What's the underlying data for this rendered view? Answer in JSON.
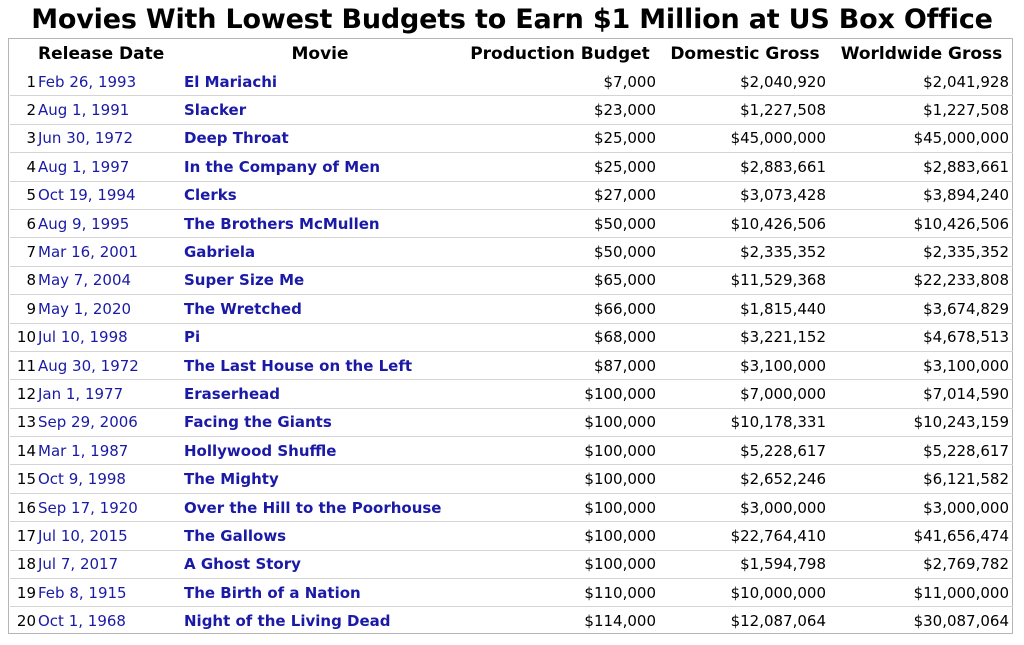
{
  "title": "Movies With Lowest Budgets to Earn $1 Million at US Box Office",
  "columns": {
    "release_date": "Release Date",
    "movie": "Movie",
    "budget": "Production Budget",
    "domestic": "Domestic Gross",
    "worldwide": "Worldwide Gross"
  },
  "rows": [
    {
      "rank": "1",
      "date": "Feb 26, 1993",
      "movie": "El Mariachi",
      "budget": "$7,000",
      "domestic": "$2,040,920",
      "worldwide": "$2,041,928"
    },
    {
      "rank": "2",
      "date": "Aug 1, 1991",
      "movie": "Slacker",
      "budget": "$23,000",
      "domestic": "$1,227,508",
      "worldwide": "$1,227,508"
    },
    {
      "rank": "3",
      "date": "Jun 30, 1972",
      "movie": "Deep Throat",
      "budget": "$25,000",
      "domestic": "$45,000,000",
      "worldwide": "$45,000,000"
    },
    {
      "rank": "4",
      "date": "Aug 1, 1997",
      "movie": "In the Company of Men",
      "budget": "$25,000",
      "domestic": "$2,883,661",
      "worldwide": "$2,883,661"
    },
    {
      "rank": "5",
      "date": "Oct 19, 1994",
      "movie": "Clerks",
      "budget": "$27,000",
      "domestic": "$3,073,428",
      "worldwide": "$3,894,240"
    },
    {
      "rank": "6",
      "date": "Aug 9, 1995",
      "movie": "The Brothers McMullen",
      "budget": "$50,000",
      "domestic": "$10,426,506",
      "worldwide": "$10,426,506"
    },
    {
      "rank": "7",
      "date": "Mar 16, 2001",
      "movie": "Gabriela",
      "budget": "$50,000",
      "domestic": "$2,335,352",
      "worldwide": "$2,335,352"
    },
    {
      "rank": "8",
      "date": "May 7, 2004",
      "movie": "Super Size Me",
      "budget": "$65,000",
      "domestic": "$11,529,368",
      "worldwide": "$22,233,808"
    },
    {
      "rank": "9",
      "date": "May 1, 2020",
      "movie": "The Wretched",
      "budget": "$66,000",
      "domestic": "$1,815,440",
      "worldwide": "$3,674,829"
    },
    {
      "rank": "10",
      "date": "Jul 10, 1998",
      "movie": "Pi",
      "budget": "$68,000",
      "domestic": "$3,221,152",
      "worldwide": "$4,678,513"
    },
    {
      "rank": "11",
      "date": "Aug 30, 1972",
      "movie": "The Last House on the Left",
      "budget": "$87,000",
      "domestic": "$3,100,000",
      "worldwide": "$3,100,000"
    },
    {
      "rank": "12",
      "date": "Jan 1, 1977",
      "movie": "Eraserhead",
      "budget": "$100,000",
      "domestic": "$7,000,000",
      "worldwide": "$7,014,590"
    },
    {
      "rank": "13",
      "date": "Sep 29, 2006",
      "movie": "Facing the Giants",
      "budget": "$100,000",
      "domestic": "$10,178,331",
      "worldwide": "$10,243,159"
    },
    {
      "rank": "14",
      "date": "Mar 1, 1987",
      "movie": "Hollywood Shuffle",
      "budget": "$100,000",
      "domestic": "$5,228,617",
      "worldwide": "$5,228,617"
    },
    {
      "rank": "15",
      "date": "Oct 9, 1998",
      "movie": "The Mighty",
      "budget": "$100,000",
      "domestic": "$2,652,246",
      "worldwide": "$6,121,582"
    },
    {
      "rank": "16",
      "date": "Sep 17, 1920",
      "movie": "Over the Hill to the Poorhouse",
      "budget": "$100,000",
      "domestic": "$3,000,000",
      "worldwide": "$3,000,000"
    },
    {
      "rank": "17",
      "date": "Jul 10, 2015",
      "movie": "The Gallows",
      "budget": "$100,000",
      "domestic": "$22,764,410",
      "worldwide": "$41,656,474"
    },
    {
      "rank": "18",
      "date": "Jul 7, 2017",
      "movie": "A Ghost Story",
      "budget": "$100,000",
      "domestic": "$1,594,798",
      "worldwide": "$2,769,782"
    },
    {
      "rank": "19",
      "date": "Feb 8, 1915",
      "movie": "The Birth of a Nation",
      "budget": "$110,000",
      "domestic": "$10,000,000",
      "worldwide": "$11,000,000"
    },
    {
      "rank": "20",
      "date": "Oct 1, 1968",
      "movie": "Night of the Living Dead",
      "budget": "$114,000",
      "domestic": "$12,087,064",
      "worldwide": "$30,087,064"
    }
  ],
  "colors": {
    "link": "#1a1aa6",
    "row_border": "#d4d4d4",
    "frame_border": "#b5b5b5"
  }
}
